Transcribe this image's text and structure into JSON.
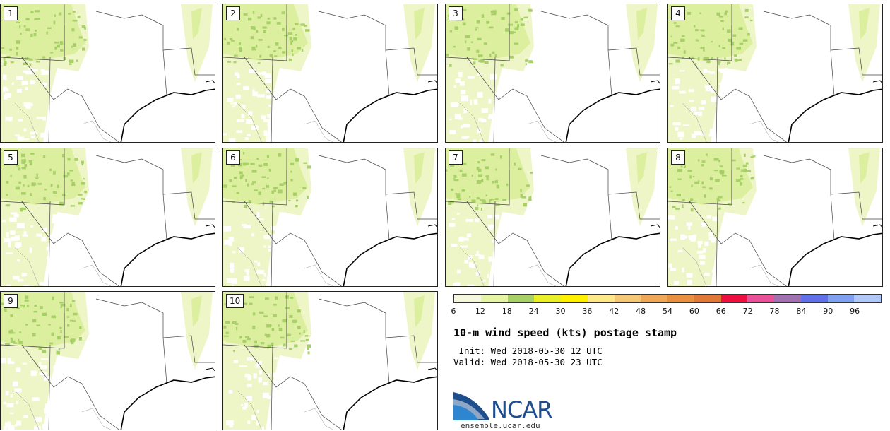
{
  "panels": [
    {
      "label": "1"
    },
    {
      "label": "2"
    },
    {
      "label": "3"
    },
    {
      "label": "4"
    },
    {
      "label": "5"
    },
    {
      "label": "6"
    },
    {
      "label": "7"
    },
    {
      "label": "8"
    },
    {
      "label": "9"
    },
    {
      "label": "10"
    }
  ],
  "colorbar": {
    "ticks": [
      "6",
      "12",
      "18",
      "24",
      "30",
      "36",
      "42",
      "48",
      "54",
      "60",
      "66",
      "72",
      "78",
      "84",
      "90",
      "96"
    ],
    "colors": [
      "#f5f8dc",
      "#e6f4a6",
      "#a8d068",
      "#e8ee28",
      "#fff000",
      "#ffe88a",
      "#f5c878",
      "#eea858",
      "#e89040",
      "#e07838",
      "#ee1040",
      "#e85098",
      "#a070b0",
      "#6070e8",
      "#80a0f0",
      "#b0c8f8"
    ]
  },
  "title": "10-m wind speed (kts) postage stamp",
  "init_line": " Init: Wed 2018-05-30 12 UTC",
  "valid_line": "Valid: Wed 2018-05-30 23 UTC",
  "logo": {
    "text": "NCAR",
    "url": "ensemble.ucar.edu"
  },
  "colors": {
    "light_green": "#eef6c8",
    "mid_green": "#dcef9e",
    "dark_green": "#a8d068",
    "logo_blue": "#1f4e8c"
  }
}
